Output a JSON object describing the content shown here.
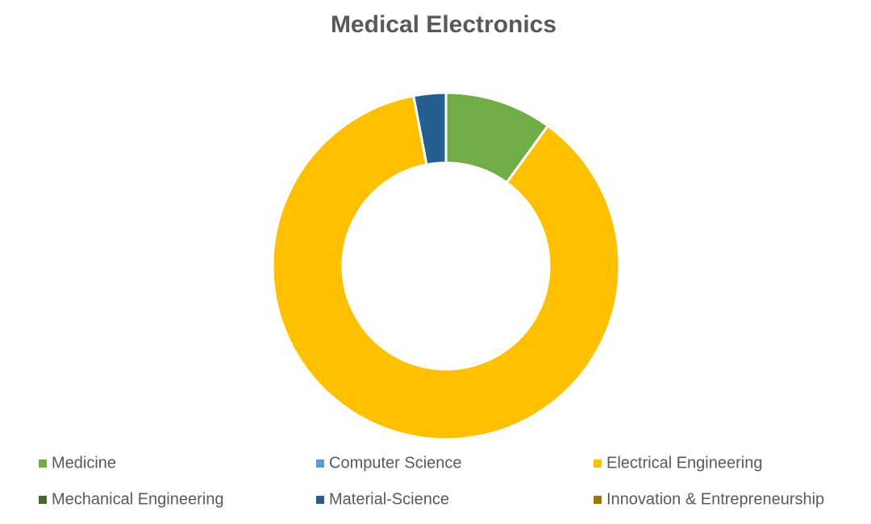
{
  "chart_data": {
    "type": "donut",
    "title": "Medical Electronics",
    "categories": [
      "Medicine",
      "Computer Science",
      "Electrical Engineering",
      "Mechanical Engineering",
      "Material-Science",
      "Innovation & Entrepreneurship"
    ],
    "values": [
      10,
      0,
      87,
      0,
      3,
      0
    ],
    "colors": [
      "#70ad47",
      "#5b9bd5",
      "#ffc000",
      "#43682b",
      "#255e91",
      "#9e7b00"
    ],
    "legend": "bottom"
  }
}
